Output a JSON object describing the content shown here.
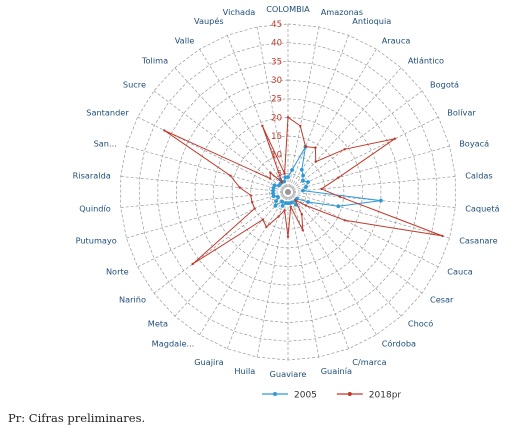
{
  "note": "Pr: Cifras preliminares.",
  "chart_data": {
    "type": "radar",
    "title": "",
    "categories": [
      "COLOMBIA",
      "Amazonas",
      "Antioquia",
      "Arauca",
      "Atlántico",
      "Bogotá",
      "Bolívar",
      "Boyacá",
      "Caldas",
      "Caquetá",
      "Casanare",
      "Cauca",
      "Cesar",
      "Chocó",
      "Córdoba",
      "C/marca",
      "Guainía",
      "Guaviare",
      "Huila",
      "Guajira",
      "Magdale...",
      "Meta",
      "Nariño",
      "Norte",
      "Putumayo",
      "Quindío",
      "Risaralda",
      "San...",
      "Santander",
      "Sucre",
      "Tolima",
      "Valle",
      "Vaupés",
      "Vichada"
    ],
    "rlim": [
      0,
      45
    ],
    "ticks": [
      0,
      5,
      10,
      15,
      20,
      25,
      30,
      35,
      40,
      45
    ],
    "gridlines": true,
    "legend_position": "bottom",
    "series": [
      {
        "name": "2005",
        "color": "#2e9bd6",
        "values": [
          4,
          6,
          13,
          7,
          6,
          5,
          6,
          5,
          4,
          25,
          14,
          6,
          3,
          3,
          4,
          3,
          3,
          3,
          3,
          4,
          3,
          5,
          4,
          3,
          4,
          4,
          4,
          4,
          4,
          3,
          3,
          4,
          3,
          4
        ]
      },
      {
        "name": "2018pr",
        "color": "#c0392b",
        "values": [
          20,
          18,
          13,
          14,
          11,
          19,
          32,
          14,
          9,
          14,
          43,
          17,
          6,
          3,
          7,
          11,
          4,
          12,
          5,
          7,
          11,
          10,
          32,
          10,
          10,
          10,
          13,
          16,
          37,
          6,
          7,
          3,
          19,
          5
        ]
      }
    ]
  }
}
